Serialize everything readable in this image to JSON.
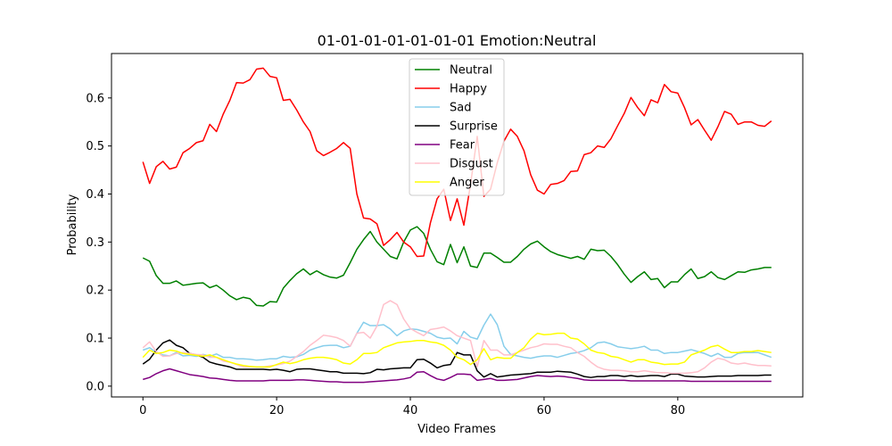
{
  "chart_data": {
    "type": "line",
    "title": "01-01-01-01-01-01-01 Emotion:Neutral",
    "xlabel": "Video Frames",
    "ylabel": "Probability",
    "xlim": [
      -4.7,
      98.7
    ],
    "ylim": [
      -0.0225,
      0.6925
    ],
    "xticks": [
      0,
      20,
      40,
      60,
      80
    ],
    "yticks": [
      0.0,
      0.1,
      0.2,
      0.3,
      0.4,
      0.5,
      0.6
    ],
    "ytick_labels": [
      "0.0",
      "0.1",
      "0.2",
      "0.3",
      "0.4",
      "0.5",
      "0.6"
    ],
    "grid": false,
    "legend_position": "top-center",
    "series": [
      {
        "name": "Neutral",
        "color": "#008000",
        "values": [
          0.267,
          0.26,
          0.23,
          0.214,
          0.214,
          0.219,
          0.21,
          0.212,
          0.214,
          0.215,
          0.205,
          0.21,
          0.2,
          0.188,
          0.18,
          0.185,
          0.182,
          0.168,
          0.167,
          0.176,
          0.175,
          0.204,
          0.22,
          0.234,
          0.244,
          0.232,
          0.24,
          0.232,
          0.227,
          0.225,
          0.231,
          0.257,
          0.285,
          0.305,
          0.322,
          0.3,
          0.285,
          0.27,
          0.265,
          0.3,
          0.325,
          0.332,
          0.318,
          0.285,
          0.259,
          0.253,
          0.295,
          0.257,
          0.29,
          0.25,
          0.247,
          0.277,
          0.277,
          0.268,
          0.258,
          0.258,
          0.27,
          0.285,
          0.296,
          0.302,
          0.29,
          0.28,
          0.274,
          0.27,
          0.266,
          0.27,
          0.264,
          0.285,
          0.282,
          0.283,
          0.27,
          0.253,
          0.233,
          0.216,
          0.228,
          0.238,
          0.222,
          0.224,
          0.205,
          0.217,
          0.217,
          0.232,
          0.244,
          0.224,
          0.228,
          0.238,
          0.226,
          0.222,
          0.23,
          0.238,
          0.237,
          0.242,
          0.244,
          0.247,
          0.247
        ]
      },
      {
        "name": "Happy",
        "color": "#ff0000",
        "values": [
          0.467,
          0.422,
          0.457,
          0.468,
          0.452,
          0.456,
          0.486,
          0.495,
          0.507,
          0.511,
          0.545,
          0.53,
          0.566,
          0.595,
          0.632,
          0.631,
          0.638,
          0.66,
          0.662,
          0.645,
          0.642,
          0.595,
          0.597,
          0.575,
          0.55,
          0.53,
          0.49,
          0.48,
          0.487,
          0.495,
          0.507,
          0.495,
          0.4,
          0.35,
          0.348,
          0.338,
          0.293,
          0.305,
          0.32,
          0.3,
          0.29,
          0.27,
          0.271,
          0.34,
          0.39,
          0.41,
          0.345,
          0.39,
          0.335,
          0.42,
          0.52,
          0.395,
          0.41,
          0.465,
          0.51,
          0.535,
          0.52,
          0.49,
          0.44,
          0.408,
          0.4,
          0.42,
          0.422,
          0.428,
          0.447,
          0.448,
          0.482,
          0.486,
          0.5,
          0.497,
          0.515,
          0.542,
          0.568,
          0.601,
          0.58,
          0.563,
          0.596,
          0.59,
          0.628,
          0.613,
          0.61,
          0.58,
          0.544,
          0.555,
          0.533,
          0.512,
          0.54,
          0.572,
          0.566,
          0.545,
          0.55,
          0.55,
          0.543,
          0.541,
          0.552
        ]
      },
      {
        "name": "Sad",
        "color": "#87ceeb",
        "values": [
          0.075,
          0.08,
          0.07,
          0.065,
          0.063,
          0.07,
          0.063,
          0.064,
          0.062,
          0.066,
          0.062,
          0.067,
          0.06,
          0.06,
          0.057,
          0.057,
          0.056,
          0.054,
          0.055,
          0.057,
          0.057,
          0.062,
          0.06,
          0.061,
          0.066,
          0.075,
          0.08,
          0.084,
          0.085,
          0.085,
          0.08,
          0.083,
          0.11,
          0.133,
          0.126,
          0.126,
          0.128,
          0.119,
          0.105,
          0.115,
          0.119,
          0.118,
          0.114,
          0.11,
          0.102,
          0.099,
          0.1,
          0.088,
          0.114,
          0.102,
          0.098,
          0.127,
          0.15,
          0.128,
          0.083,
          0.066,
          0.063,
          0.06,
          0.058,
          0.061,
          0.063,
          0.063,
          0.06,
          0.064,
          0.068,
          0.07,
          0.074,
          0.08,
          0.09,
          0.092,
          0.088,
          0.082,
          0.08,
          0.078,
          0.08,
          0.083,
          0.075,
          0.075,
          0.068,
          0.07,
          0.07,
          0.073,
          0.076,
          0.072,
          0.068,
          0.062,
          0.068,
          0.06,
          0.06,
          0.068,
          0.07,
          0.07,
          0.07,
          0.065,
          0.06
        ]
      },
      {
        "name": "Surprise",
        "color": "#000000",
        "values": [
          0.046,
          0.056,
          0.075,
          0.09,
          0.096,
          0.085,
          0.08,
          0.068,
          0.065,
          0.06,
          0.05,
          0.046,
          0.043,
          0.04,
          0.035,
          0.035,
          0.035,
          0.035,
          0.035,
          0.034,
          0.035,
          0.033,
          0.03,
          0.035,
          0.036,
          0.036,
          0.034,
          0.032,
          0.03,
          0.03,
          0.027,
          0.027,
          0.027,
          0.026,
          0.028,
          0.035,
          0.034,
          0.036,
          0.037,
          0.038,
          0.038,
          0.055,
          0.056,
          0.048,
          0.038,
          0.043,
          0.045,
          0.07,
          0.065,
          0.065,
          0.032,
          0.019,
          0.026,
          0.019,
          0.021,
          0.023,
          0.024,
          0.025,
          0.026,
          0.029,
          0.029,
          0.029,
          0.031,
          0.03,
          0.029,
          0.025,
          0.02,
          0.018,
          0.02,
          0.02,
          0.022,
          0.022,
          0.02,
          0.022,
          0.02,
          0.021,
          0.022,
          0.022,
          0.02,
          0.025,
          0.025,
          0.021,
          0.02,
          0.019,
          0.019,
          0.02,
          0.021,
          0.021,
          0.021,
          0.022,
          0.022,
          0.022,
          0.022,
          0.023,
          0.023
        ]
      },
      {
        "name": "Fear",
        "color": "#800080",
        "values": [
          0.014,
          0.018,
          0.026,
          0.032,
          0.036,
          0.032,
          0.028,
          0.024,
          0.022,
          0.02,
          0.017,
          0.016,
          0.014,
          0.012,
          0.011,
          0.011,
          0.011,
          0.011,
          0.011,
          0.012,
          0.012,
          0.012,
          0.012,
          0.013,
          0.013,
          0.012,
          0.011,
          0.01,
          0.009,
          0.009,
          0.008,
          0.008,
          0.008,
          0.008,
          0.009,
          0.01,
          0.011,
          0.012,
          0.013,
          0.015,
          0.018,
          0.029,
          0.03,
          0.022,
          0.015,
          0.012,
          0.018,
          0.025,
          0.025,
          0.024,
          0.012,
          0.014,
          0.016,
          0.012,
          0.012,
          0.013,
          0.014,
          0.017,
          0.02,
          0.022,
          0.021,
          0.02,
          0.021,
          0.02,
          0.018,
          0.016,
          0.013,
          0.012,
          0.012,
          0.012,
          0.012,
          0.012,
          0.012,
          0.011,
          0.011,
          0.011,
          0.011,
          0.011,
          0.011,
          0.011,
          0.011,
          0.011,
          0.01,
          0.01,
          0.01,
          0.01,
          0.01,
          0.01,
          0.01,
          0.01,
          0.01,
          0.01,
          0.01,
          0.01,
          0.01
        ]
      },
      {
        "name": "Disgust",
        "color": "#ffc0cb",
        "values": [
          0.08,
          0.092,
          0.072,
          0.062,
          0.063,
          0.068,
          0.07,
          0.068,
          0.066,
          0.065,
          0.06,
          0.06,
          0.052,
          0.05,
          0.045,
          0.04,
          0.04,
          0.04,
          0.04,
          0.042,
          0.044,
          0.047,
          0.052,
          0.062,
          0.072,
          0.085,
          0.095,
          0.106,
          0.104,
          0.101,
          0.095,
          0.083,
          0.11,
          0.112,
          0.1,
          0.125,
          0.17,
          0.178,
          0.17,
          0.14,
          0.12,
          0.112,
          0.105,
          0.118,
          0.12,
          0.123,
          0.115,
          0.105,
          0.1,
          0.095,
          0.04,
          0.095,
          0.075,
          0.075,
          0.065,
          0.065,
          0.07,
          0.075,
          0.08,
          0.083,
          0.088,
          0.087,
          0.087,
          0.083,
          0.08,
          0.07,
          0.062,
          0.05,
          0.04,
          0.035,
          0.033,
          0.033,
          0.032,
          0.03,
          0.03,
          0.032,
          0.03,
          0.028,
          0.028,
          0.027,
          0.027,
          0.027,
          0.028,
          0.03,
          0.038,
          0.05,
          0.058,
          0.055,
          0.048,
          0.046,
          0.048,
          0.045,
          0.043,
          0.043,
          0.042
        ]
      },
      {
        "name": "Anger",
        "color": "#ffff00",
        "values": [
          0.06,
          0.075,
          0.068,
          0.07,
          0.075,
          0.073,
          0.068,
          0.066,
          0.064,
          0.062,
          0.065,
          0.06,
          0.055,
          0.05,
          0.046,
          0.043,
          0.041,
          0.04,
          0.04,
          0.04,
          0.045,
          0.05,
          0.047,
          0.05,
          0.055,
          0.058,
          0.06,
          0.06,
          0.058,
          0.055,
          0.048,
          0.046,
          0.055,
          0.068,
          0.068,
          0.07,
          0.08,
          0.085,
          0.09,
          0.092,
          0.093,
          0.095,
          0.095,
          0.092,
          0.09,
          0.085,
          0.075,
          0.06,
          0.055,
          0.045,
          0.055,
          0.078,
          0.055,
          0.06,
          0.058,
          0.058,
          0.07,
          0.08,
          0.098,
          0.11,
          0.107,
          0.108,
          0.11,
          0.11,
          0.1,
          0.098,
          0.088,
          0.075,
          0.07,
          0.068,
          0.062,
          0.06,
          0.055,
          0.05,
          0.055,
          0.055,
          0.05,
          0.048,
          0.045,
          0.046,
          0.046,
          0.05,
          0.065,
          0.07,
          0.075,
          0.082,
          0.085,
          0.077,
          0.07,
          0.07,
          0.072,
          0.072,
          0.074,
          0.072,
          0.07
        ]
      }
    ]
  }
}
